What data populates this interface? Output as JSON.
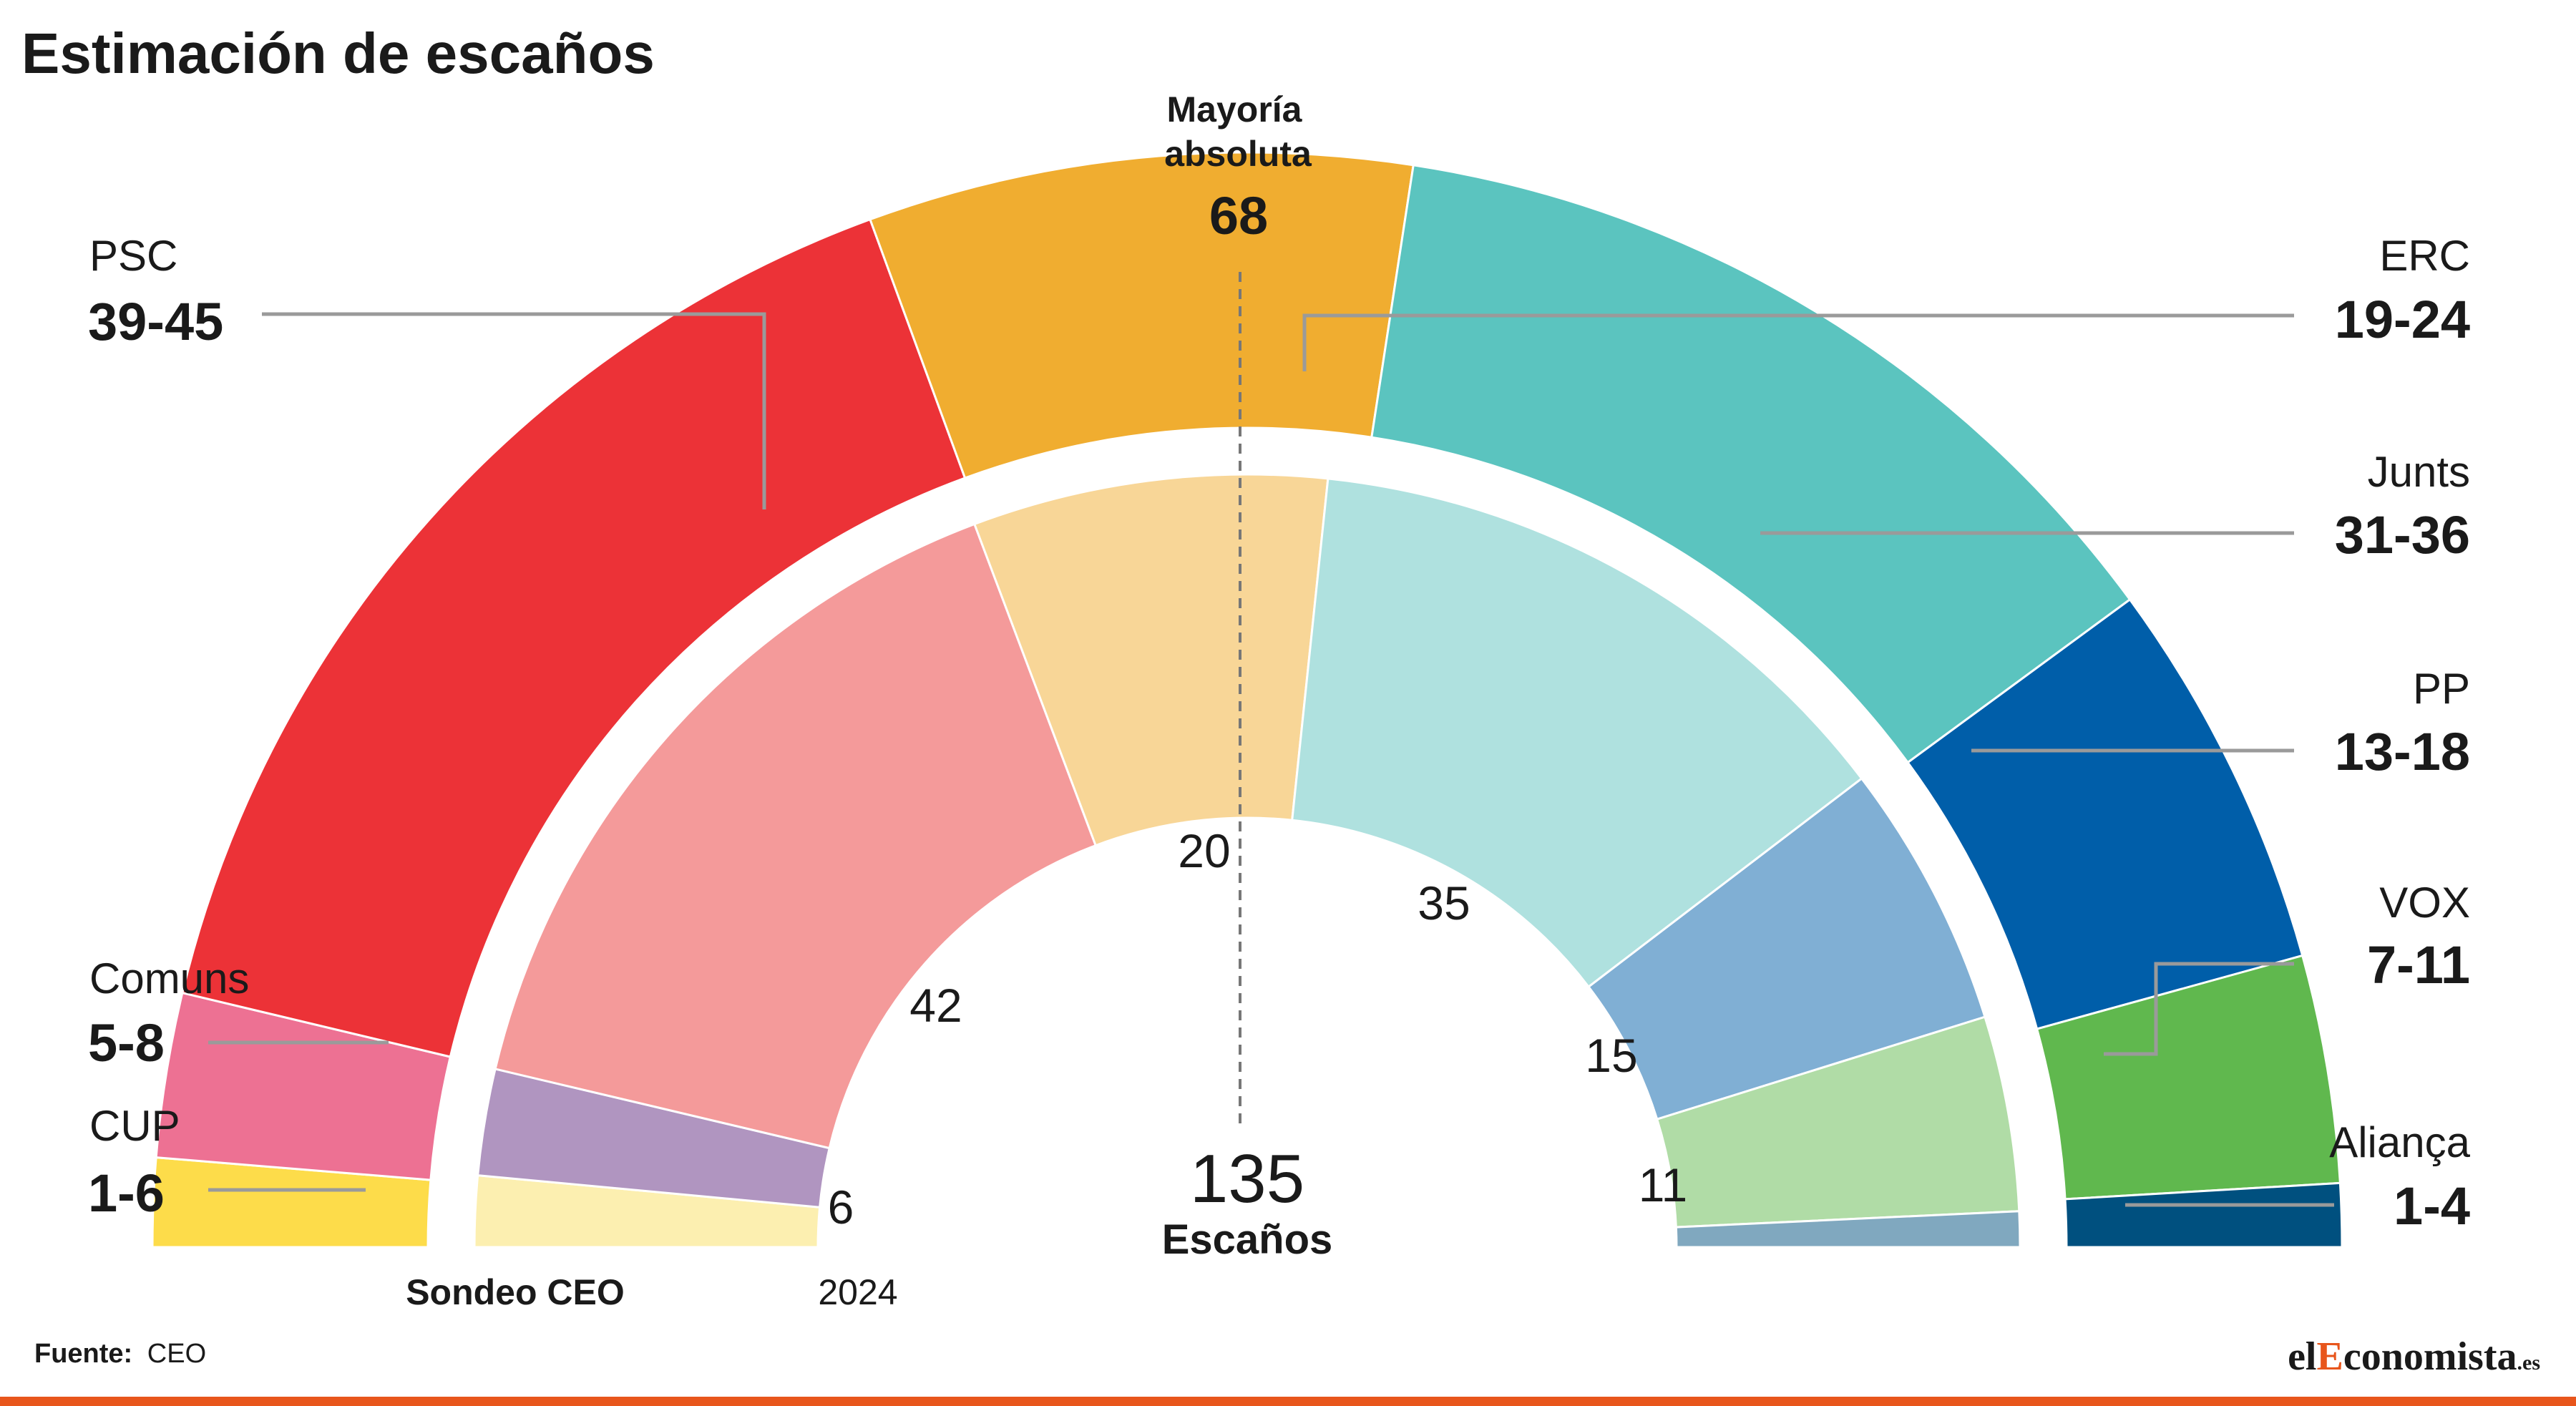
{
  "title": "Estimación de escaños",
  "majority": {
    "label_line1": "Mayoría",
    "label_line2": "absoluta",
    "value": "68"
  },
  "center": {
    "total": "135",
    "label": "Escaños"
  },
  "ring_labels": {
    "outer": "Sondeo CEO",
    "inner": "2024"
  },
  "source": {
    "label": "Fuente:",
    "value": "CEO"
  },
  "logo": {
    "part1": "el",
    "part2": "E",
    "part3": "conomista",
    "part4": ".es"
  },
  "chart_data": {
    "type": "parliament-semicircle",
    "title": "Estimación de escaños",
    "total_seats": 135,
    "majority": 68,
    "parties": [
      {
        "name": "CUP",
        "range": "1-6",
        "low": 1,
        "high": 6,
        "seats_2024": 4,
        "color": "#fddc4a",
        "color_2024": "#fcefb0"
      },
      {
        "name": "Comuns",
        "range": "5-8",
        "low": 5,
        "high": 8,
        "seats_2024": 6,
        "color": "#ed7193",
        "color_2024": "#b095c0"
      },
      {
        "name": "PSC",
        "range": "39-45",
        "low": 39,
        "high": 45,
        "seats_2024": 42,
        "color": "#ec3237",
        "color_2024": "#f49a9a"
      },
      {
        "name": "ERC",
        "range": "19-24",
        "low": 19,
        "high": 24,
        "seats_2024": 20,
        "color": "#f0ad30",
        "color_2024": "#f8d697"
      },
      {
        "name": "Junts",
        "range": "31-36",
        "low": 31,
        "high": 36,
        "seats_2024": 35,
        "color": "#5bc4bf",
        "color_2024": "#afe1df"
      },
      {
        "name": "PP",
        "range": "13-18",
        "low": 13,
        "high": 18,
        "seats_2024": 15,
        "color": "#005ea9",
        "color_2024": "#80afd4"
      },
      {
        "name": "VOX",
        "range": "7-11",
        "low": 7,
        "high": 11,
        "seats_2024": 11,
        "color": "#60b84e",
        "color_2024": "#b0dca6"
      },
      {
        "name": "Aliança",
        "range": "1-4",
        "low": 1,
        "high": 4,
        "seats_2024": 2,
        "color": "#00507f",
        "color_2024": "#80a8bf"
      }
    ],
    "inner_labels_shown": [
      {
        "party": "Comuns",
        "value": "6"
      },
      {
        "party": "PSC",
        "value": "42"
      },
      {
        "party": "ERC",
        "value": "20"
      },
      {
        "party": "Junts",
        "value": "35"
      },
      {
        "party": "PP",
        "value": "15"
      },
      {
        "party": "VOX",
        "value": "11"
      }
    ]
  }
}
